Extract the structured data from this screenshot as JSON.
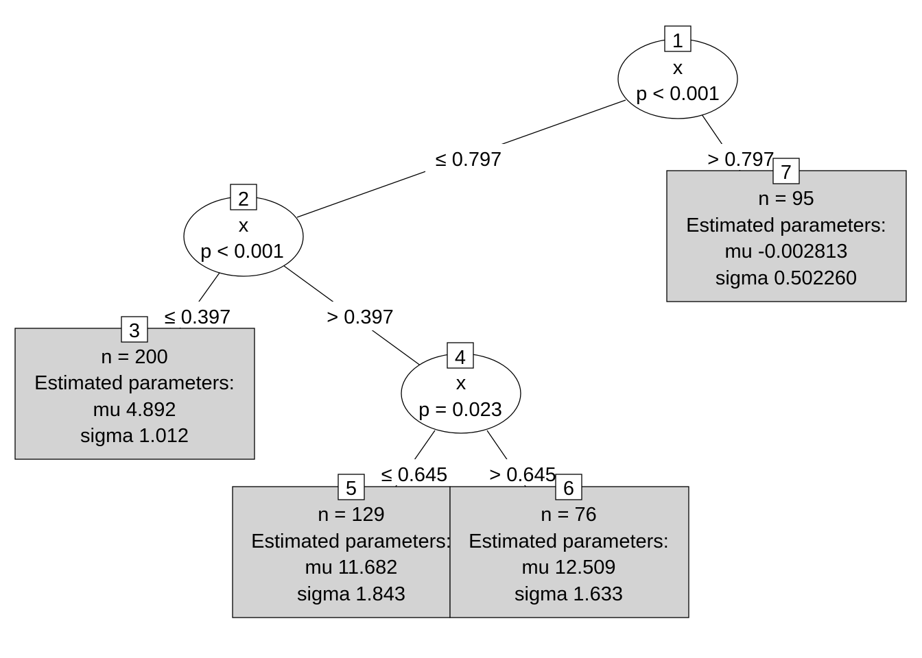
{
  "nodes": {
    "n1": {
      "id": "1",
      "var": "x",
      "p": "p < 0.001"
    },
    "n2": {
      "id": "2",
      "var": "x",
      "p": "p < 0.001"
    },
    "n4": {
      "id": "4",
      "var": "x",
      "p": "p = 0.023"
    },
    "n3": {
      "id": "3",
      "n": "n = 200",
      "header": "Estimated parameters:",
      "mu": "mu 4.892",
      "sigma": "sigma 1.012"
    },
    "n5": {
      "id": "5",
      "n": "n = 129",
      "header": "Estimated parameters:",
      "mu": "mu 11.682",
      "sigma": "sigma 1.843"
    },
    "n6": {
      "id": "6",
      "n": "n = 76",
      "header": "Estimated parameters:",
      "mu": "mu 12.509",
      "sigma": "sigma 1.633"
    },
    "n7": {
      "id": "7",
      "n": "n = 95",
      "header": "Estimated parameters:",
      "mu": "mu -0.002813",
      "sigma": "sigma 0.502260"
    }
  },
  "edges": {
    "e12": "≤ 0.797",
    "e17": "> 0.797",
    "e23": "≤ 0.397",
    "e24": "> 0.397",
    "e45": "≤ 0.645",
    "e46": "> 0.645"
  }
}
